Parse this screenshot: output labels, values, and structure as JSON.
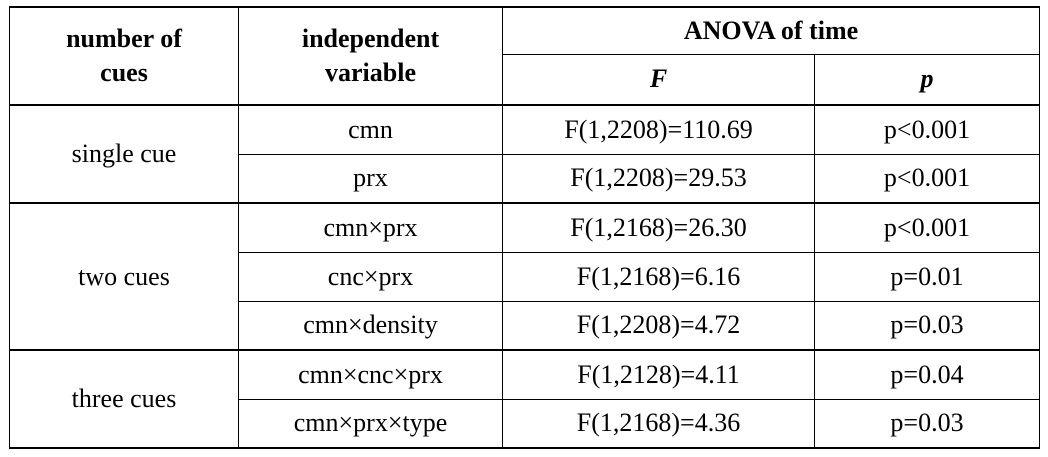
{
  "table": {
    "headers": {
      "number_of_cues": "number of cues",
      "independent_variable": "independent variable",
      "anova": "ANOVA of time",
      "f": "F",
      "p": "p"
    },
    "groups": [
      {
        "label": "single cue",
        "rows": [
          {
            "variable": "cmn",
            "f": "F(1,2208)=110.69",
            "p": "p<0.001"
          },
          {
            "variable": "prx",
            "f": "F(1,2208)=29.53",
            "p": "p<0.001"
          }
        ]
      },
      {
        "label": "two cues",
        "rows": [
          {
            "variable": "cmn×prx",
            "f": "F(1,2168)=26.30",
            "p": "p<0.001"
          },
          {
            "variable": "cnc×prx",
            "f": "F(1,2168)=6.16",
            "p": "p=0.01"
          },
          {
            "variable": "cmn×density",
            "f": "F(1,2208)=4.72",
            "p": "p=0.03"
          }
        ]
      },
      {
        "label": "three cues",
        "rows": [
          {
            "variable": "cmn×cnc×prx",
            "f": "F(1,2128)=4.11",
            "p": "p=0.04"
          },
          {
            "variable": "cmn×prx×type",
            "f": "F(1,2168)=4.36",
            "p": "p=0.03"
          }
        ]
      }
    ]
  }
}
